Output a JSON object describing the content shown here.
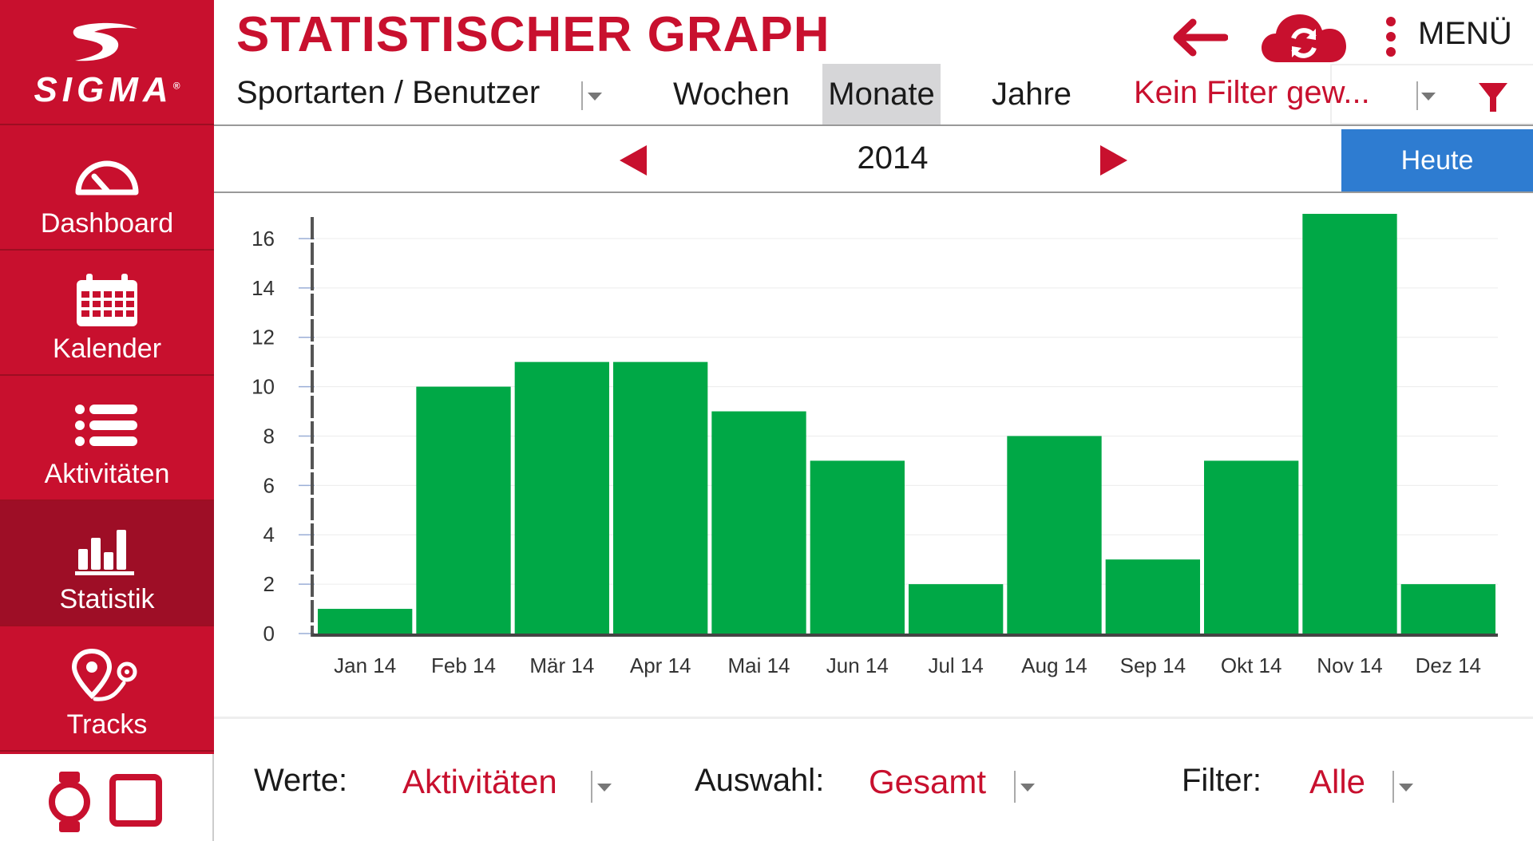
{
  "app": {
    "logo_text": "SIGMA",
    "title": "STATISTISCHER GRAPH",
    "menu_label": "MENÜ"
  },
  "colors": {
    "brand_red": "#c8102e",
    "sidebar_active": "#9e0e26",
    "bar_green": "#00a846",
    "today_blue": "#2e7cd1"
  },
  "sidebar": {
    "items": [
      {
        "label": "Dashboard",
        "icon": "speedometer-icon"
      },
      {
        "label": "Kalender",
        "icon": "calendar-icon"
      },
      {
        "label": "Aktivitäten",
        "icon": "list-icon"
      },
      {
        "label": "Statistik",
        "icon": "bar-chart-icon",
        "active": true
      },
      {
        "label": "Tracks",
        "icon": "route-pin-icon"
      }
    ],
    "device_icons": [
      "watch-icon",
      "bike-computer-icon"
    ]
  },
  "header": {
    "icons": [
      "back-arrow-icon",
      "cloud-sync-icon",
      "more-vertical-icon"
    ]
  },
  "toolbar": {
    "sport_user_label": "Sportarten / Benutzer",
    "tabs": [
      {
        "label": "Wochen",
        "active": false
      },
      {
        "label": "Monate",
        "active": true
      },
      {
        "label": "Jahre",
        "active": false
      }
    ],
    "filter_text": "Kein Filter gew...",
    "filter_icon": "funnel-icon"
  },
  "yearbar": {
    "year": "2014",
    "today_label": "Heute"
  },
  "chart_data": {
    "type": "bar",
    "categories": [
      "Jan 14",
      "Feb 14",
      "Mär 14",
      "Apr 14",
      "Mai 14",
      "Jun 14",
      "Jul 14",
      "Aug 14",
      "Sep 14",
      "Okt 14",
      "Nov 14",
      "Dez 14"
    ],
    "values": [
      1,
      10,
      11,
      11,
      9,
      7,
      2,
      8,
      3,
      7,
      17,
      2
    ],
    "yticks": [
      0,
      2,
      4,
      6,
      8,
      10,
      12,
      14,
      16
    ],
    "ylim": [
      0,
      17
    ],
    "grid": true,
    "legend": false
  },
  "footer": {
    "werte_label": "Werte:",
    "werte_value": "Aktivitäten",
    "auswahl_label": "Auswahl:",
    "auswahl_value": "Gesamt",
    "filter_label": "Filter:",
    "filter_value": "Alle"
  }
}
